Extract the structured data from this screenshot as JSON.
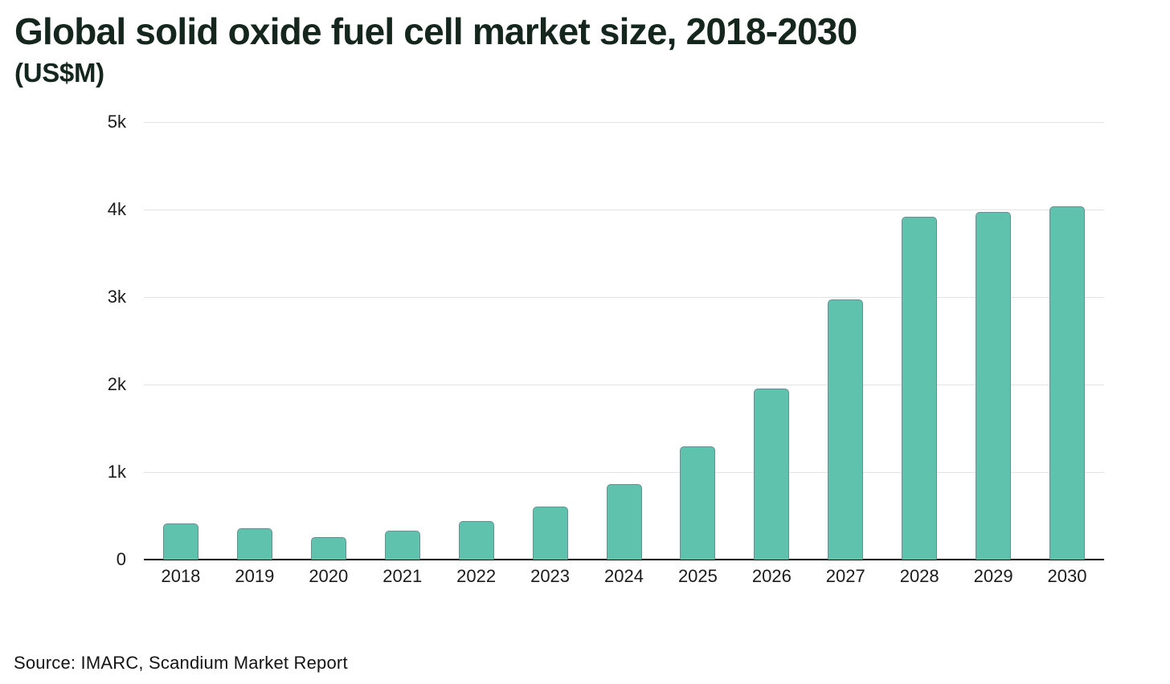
{
  "header": {
    "title": "Global solid oxide fuel cell market size, 2018-2030",
    "subtitle": "(US$M)"
  },
  "source": {
    "label": "Source: IMARC, Scandium Market Report"
  },
  "colors": {
    "bar_fill": "#5FC2AC",
    "bar_border": "#6E8C96",
    "gridline": "#e3e3e3",
    "axis_line": "#000000",
    "title_text": "#15261F",
    "tick_text": "#1b1b1b"
  },
  "chart_data": {
    "type": "bar",
    "title": "Global solid oxide fuel cell market size, 2018-2030",
    "subtitle": "(US$M)",
    "xlabel": "",
    "ylabel": "US$M",
    "categories": [
      "2018",
      "2019",
      "2020",
      "2021",
      "2022",
      "2023",
      "2024",
      "2025",
      "2026",
      "2027",
      "2028",
      "2029",
      "2030"
    ],
    "values": [
      410,
      360,
      260,
      330,
      440,
      610,
      860,
      1290,
      1950,
      2970,
      3920,
      3970,
      4040
    ],
    "ylim": [
      0,
      5000
    ],
    "yticks": [
      0,
      1000,
      2000,
      3000,
      4000,
      5000
    ],
    "ytick_labels": [
      "0",
      "1k",
      "2k",
      "3k",
      "4k",
      "5k"
    ],
    "grid": true,
    "legend": false,
    "source": "Source: IMARC, Scandium Market Report"
  }
}
